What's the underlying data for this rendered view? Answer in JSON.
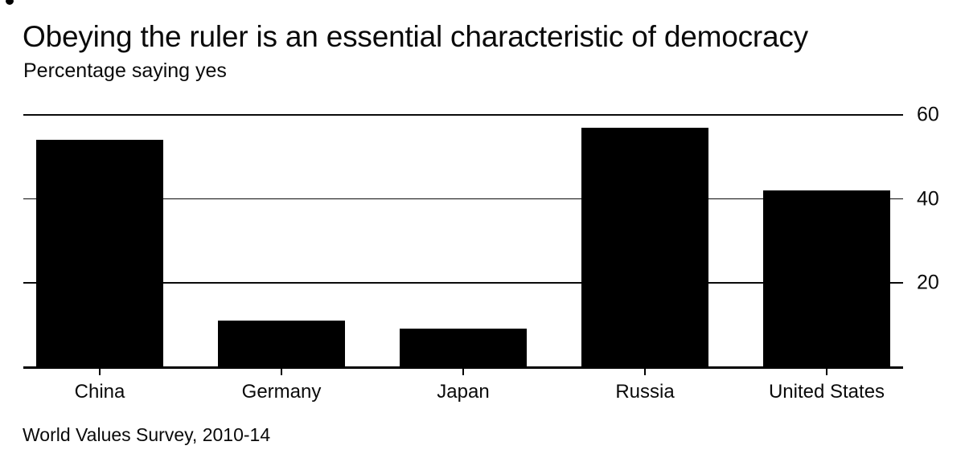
{
  "chart_data": {
    "type": "bar",
    "title": "Obeying the ruler is an essential characteristic of democracy",
    "subtitle": "Percentage saying yes",
    "source": "World Values Survey, 2010-14",
    "categories": [
      "China",
      "Germany",
      "Japan",
      "Russia",
      "United States"
    ],
    "values": [
      54,
      11,
      9,
      57,
      42
    ],
    "ylim": [
      0,
      60
    ],
    "yticks": [
      20,
      40,
      60
    ],
    "ytick_side": "right",
    "grid": "horizontal",
    "legend": "none",
    "bar_color": "#000000",
    "axis_color": "#000000",
    "background_color": "#ffffff",
    "text_color": "#0a0a0a"
  }
}
